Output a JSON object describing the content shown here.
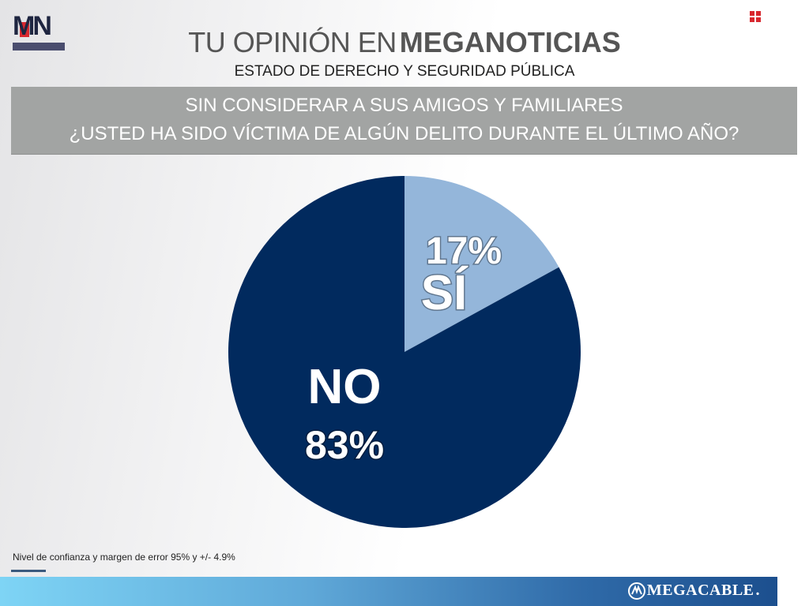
{
  "header": {
    "logo_text": "MN",
    "title_light": "TU OPINIÓN EN",
    "title_bold": "MEGANOTICIAS",
    "subtitle": "ESTADO DE DERECHO Y SEGURIDAD PÚBLICA"
  },
  "question": {
    "line1": "SIN CONSIDERAR A SUS AMIGOS Y FAMILIARES",
    "line2": "¿USTED HA SIDO VÍCTIMA DE ALGÚN DELITO DURANTE EL ÚLTIMO AÑO?"
  },
  "colors": {
    "si": "#94b6da",
    "no": "#012a5e",
    "question_bg": "#a2a4a3",
    "accent_red": "#d8282f"
  },
  "chart_data": {
    "type": "pie",
    "slices": [
      {
        "label": "SÍ",
        "value": 17,
        "value_label": "17%",
        "color": "#94b6da"
      },
      {
        "label": "NO",
        "value": 83,
        "value_label": "83%",
        "color": "#012a5e"
      }
    ],
    "start_angle": "12 o'clock",
    "direction": "clockwise"
  },
  "footer": {
    "note": "Nivel de confianza y margen de error 95% y +/- 4.9%",
    "brand": "MEGACABLE",
    "brand_suffix": "."
  }
}
